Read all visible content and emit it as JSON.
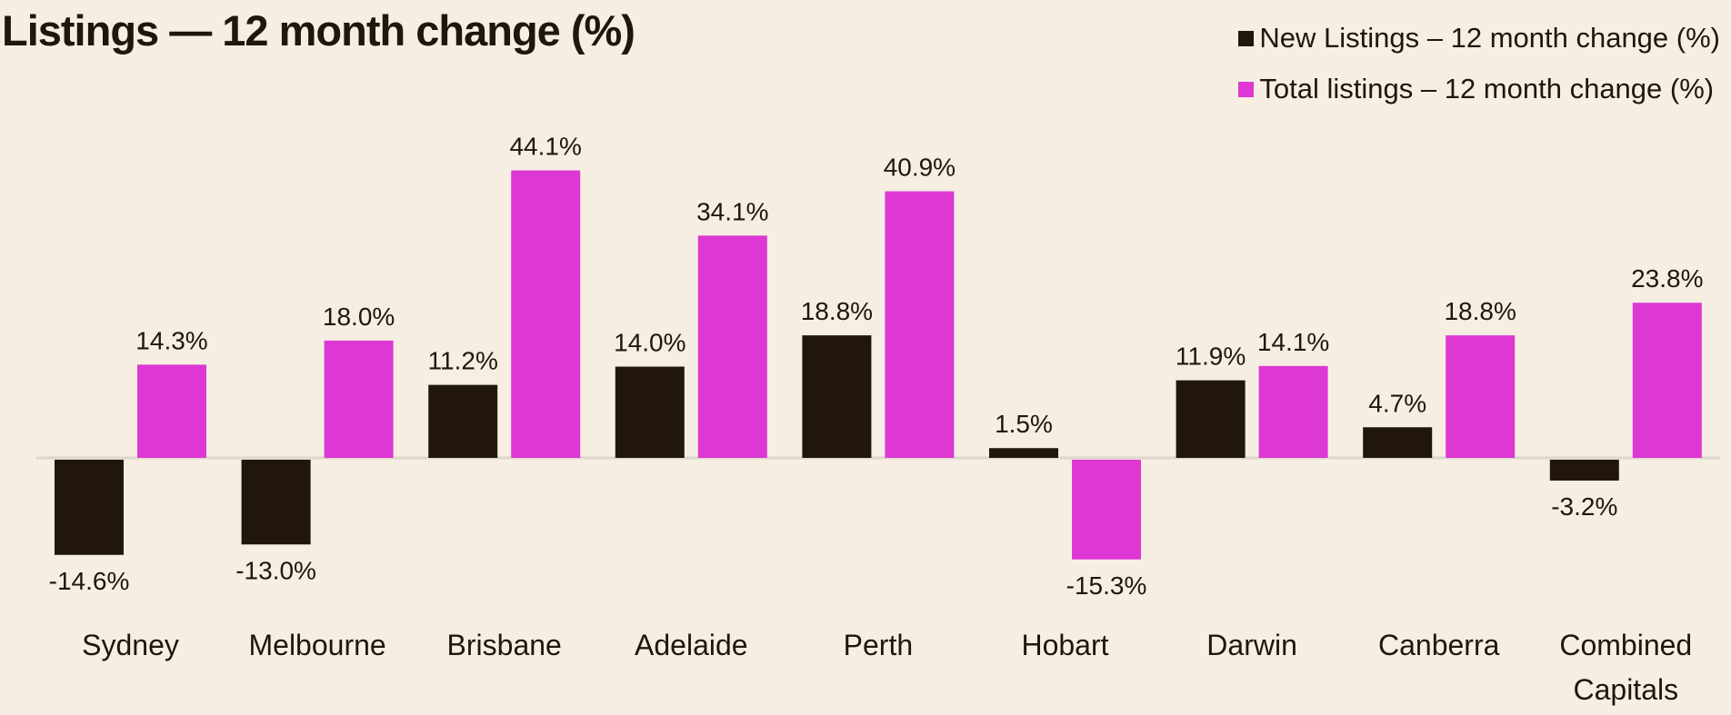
{
  "title": "Listings — 12 month change (%)",
  "colors": {
    "background": "#f6eee2",
    "new_listings": "#20160b",
    "total_listings": "#dd38d3",
    "baseline": "#ddd6cc"
  },
  "chart_data": {
    "type": "bar",
    "title": "Listings — 12 month change (%)",
    "xlabel": "",
    "ylabel": "",
    "categories": [
      "Sydney",
      "Melbourne",
      "Brisbane",
      "Adelaide",
      "Perth",
      "Hobart",
      "Darwin",
      "Canberra",
      "Combined Capitals"
    ],
    "series": [
      {
        "name": "New Listings – 12 month change (%)",
        "values": [
          -14.6,
          -13.0,
          11.2,
          14.0,
          18.8,
          1.5,
          11.9,
          4.7,
          -3.2
        ]
      },
      {
        "name": "Total listings – 12 month change (%)",
        "values": [
          14.3,
          18.0,
          44.1,
          34.1,
          40.9,
          -15.3,
          14.1,
          18.8,
          23.8
        ]
      }
    ],
    "data_labels": [
      [
        "-14.6%",
        "-13.0%",
        "11.2%",
        "14.0%",
        "18.8%",
        "1.5%",
        "11.9%",
        "4.7%",
        "-3.2%"
      ],
      [
        "14.3%",
        "18.0%",
        "44.1%",
        "34.1%",
        "40.9%",
        "-15.3%",
        "14.1%",
        "18.8%",
        "23.8%"
      ]
    ],
    "ylim": [
      -20,
      50
    ],
    "grid": false,
    "legend_position": "top-right"
  }
}
